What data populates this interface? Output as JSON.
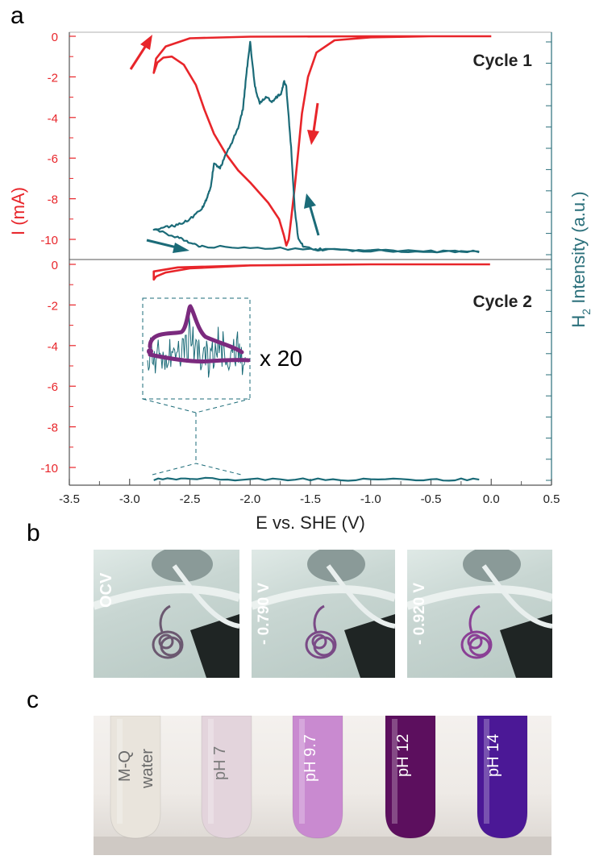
{
  "panel_letters": {
    "a": "a",
    "b": "b",
    "c": "c"
  },
  "colors": {
    "current": "#e8252a",
    "h2": "#1b6b78",
    "inset": "#7b2a7e",
    "axis_left": "#e8252a",
    "axis_right": "#2a6f7a"
  },
  "chart_data": [
    {
      "type": "line",
      "panel": "a",
      "title": "Cycle 1",
      "xlabel": "E vs. SHE (V)",
      "ylabel": "I (mA)",
      "ylabel_right": "H2 Intensity (a.u.)",
      "xlim": [
        -3.5,
        0.5
      ],
      "ylim": [
        -11,
        0.3
      ],
      "x_ticks": [
        "-3.5",
        "-3.0",
        "-2.5",
        "-2.0",
        "-1.5",
        "-1.0",
        "-0.5",
        "0.0",
        "0.5"
      ],
      "y_ticks": [
        "0",
        "-2",
        "-4",
        "-6",
        "-8",
        "-10"
      ],
      "series": [
        {
          "name": "I",
          "axis": "left",
          "x": [
            -0.01,
            -0.5,
            -1.0,
            -1.3,
            -1.45,
            -1.52,
            -1.57,
            -1.6,
            -1.63,
            -1.66,
            -1.68,
            -1.7,
            -1.72,
            -1.76,
            -1.85,
            -2.0,
            -2.1,
            -2.2,
            -2.3,
            -2.38,
            -2.45,
            -2.55,
            -2.65,
            -2.72,
            -2.77,
            -2.8,
            -2.78,
            -2.7,
            -2.5,
            -2.0,
            -1.0,
            0.0
          ],
          "y": [
            0,
            0,
            -0.05,
            -0.2,
            -0.8,
            -2.0,
            -3.8,
            -5.6,
            -7.4,
            -9.0,
            -10.0,
            -10.3,
            -9.8,
            -9.0,
            -8.2,
            -7.2,
            -6.6,
            -5.8,
            -4.8,
            -3.6,
            -2.4,
            -1.4,
            -1.0,
            -1.05,
            -1.3,
            -1.8,
            -1.1,
            -0.5,
            -0.1,
            -0.02,
            0,
            0
          ]
        },
        {
          "name": "H2",
          "axis": "right",
          "x": [
            -0.1,
            -0.5,
            -1.0,
            -1.4,
            -1.55,
            -1.6,
            -1.63,
            -1.66,
            -1.7,
            -1.72,
            -1.74,
            -1.78,
            -1.82,
            -1.87,
            -1.92,
            -1.96,
            -2.0,
            -2.03,
            -2.06,
            -2.1,
            -2.15,
            -2.2,
            -2.25,
            -2.3,
            -2.33,
            -2.36,
            -2.4,
            -2.5,
            -2.6,
            -2.7,
            -2.8,
            -2.6,
            -2.5,
            -2.4,
            -2.0,
            -1.5,
            -1.0,
            -0.5,
            -0.1
          ],
          "y": [
            -10.6,
            -10.6,
            -10.55,
            -10.5,
            -10.4,
            -10.0,
            -8.5,
            -5.5,
            -2.5,
            -2.2,
            -2.8,
            -3.0,
            -3.2,
            -3.0,
            -3.3,
            -2.5,
            -0.3,
            -1.8,
            -3.6,
            -4.5,
            -5.2,
            -5.8,
            -6.5,
            -6.3,
            -7.5,
            -8.0,
            -8.5,
            -9.0,
            -9.3,
            -9.4,
            -9.5,
            -9.9,
            -10.2,
            -10.35,
            -10.4,
            -10.5,
            -10.55,
            -10.6,
            -10.6
          ]
        }
      ],
      "annotations": []
    },
    {
      "type": "line",
      "panel": "a",
      "title": "Cycle 2",
      "xlabel": "E vs. SHE (V)",
      "ylabel": "I (mA)",
      "ylabel_right": "H2 Intensity (a.u.)",
      "xlim": [
        -3.5,
        0.5
      ],
      "ylim": [
        -11,
        0.3
      ],
      "x_ticks": [
        "-3.5",
        "-3.0",
        "-2.5",
        "-2.0",
        "-1.5",
        "-1.0",
        "-0.5",
        "0.0",
        "0.5"
      ],
      "y_ticks": [
        "0",
        "-2",
        "-4",
        "-6",
        "-8",
        "-10"
      ],
      "series": [
        {
          "name": "I",
          "axis": "left",
          "x": [
            -0.01,
            -1.0,
            -2.0,
            -2.5,
            -2.7,
            -2.78,
            -2.8,
            -2.8,
            -2.6,
            -2.0,
            -1.0,
            -0.01
          ],
          "y": [
            0,
            0,
            -0.05,
            -0.2,
            -0.4,
            -0.6,
            -0.75,
            -0.35,
            -0.15,
            -0.05,
            0,
            0
          ]
        },
        {
          "name": "H2",
          "axis": "right",
          "x": [
            -2.8,
            -2.5,
            -2.0,
            -1.5,
            -1.0,
            -0.5,
            -0.1
          ],
          "y": [
            -10.6,
            -10.55,
            -10.6,
            -10.6,
            -10.6,
            -10.6,
            -10.6
          ]
        }
      ],
      "inset_label": "x 20"
    }
  ],
  "photos_b": [
    {
      "label": "OCV"
    },
    {
      "label": "- 0.790 V"
    },
    {
      "label": "- 0.920 V"
    }
  ],
  "tubes_c": [
    {
      "label_1": "M-Q",
      "label_2": "water",
      "color": "#e9e4dc",
      "text": "#6a6a6a"
    },
    {
      "label_1": "pH 7",
      "label_2": "",
      "color": "#e3d4dc",
      "text": "#7a7a7a"
    },
    {
      "label_1": "pH 9.7",
      "label_2": "",
      "color": "#c98ad0",
      "text": "#ffffff"
    },
    {
      "label_1": "pH 12",
      "label_2": "",
      "color": "#5c0f5e",
      "text": "#ffffff"
    },
    {
      "label_1": "pH 14",
      "label_2": "",
      "color": "#4b1896",
      "text": "#ffffff"
    }
  ]
}
